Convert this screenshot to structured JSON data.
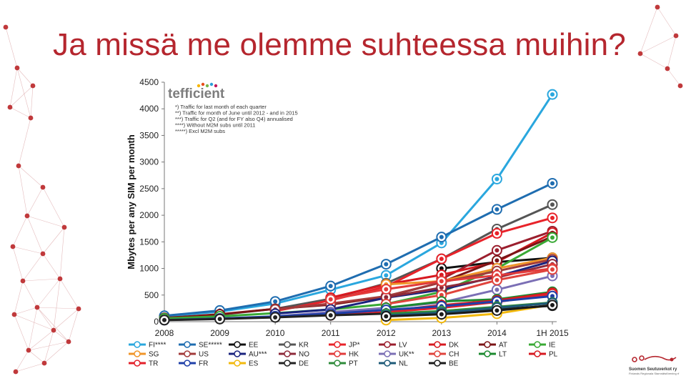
{
  "slide": {
    "title": "Ja missä me olemme suhteessa muihin?"
  },
  "colors": {
    "title": "#b5262e",
    "decoration": "#c0393b"
  },
  "brand": {
    "name": "tefficient",
    "dot_colors": [
      "#f7b500",
      "#e84e1b",
      "#7ab648",
      "#2c9fd9",
      "#c2185b"
    ]
  },
  "notes": [
    "*) Traffic for last month of each quarter",
    "**) Traffic for month of June until 2012 - and in 2015",
    "***) Traffic for Q2 (and for FY also Q4) annualised",
    "****) Without M2M subs until 2011",
    "*****) Excl M2M subs"
  ],
  "logo": {
    "line1": "Suomen Seutuverkot ry",
    "line2": "Finlands Regionala Stamnätsförening rf"
  },
  "chart_data": {
    "type": "line",
    "ylabel": "Mbytes per any SIM per month",
    "ylim": [
      0,
      4500
    ],
    "yticks": [
      0,
      500,
      1000,
      1500,
      2000,
      2500,
      3000,
      3500,
      4000,
      4500
    ],
    "categories": [
      "2008",
      "2009",
      "2010",
      "2011",
      "2012",
      "2013",
      "2014",
      "1H 2015"
    ],
    "grid": false,
    "legend_position": "bottom",
    "series": [
      {
        "name": "FI****",
        "color": "#2aa7de",
        "values": [
          100,
          190,
          340,
          600,
          870,
          1480,
          2680,
          4270
        ]
      },
      {
        "name": "SE*****",
        "color": "#1f6db0",
        "values": [
          110,
          210,
          380,
          670,
          1080,
          1590,
          2110,
          2600
        ]
      },
      {
        "name": "EE",
        "color": "#111111",
        "values": [
          null,
          null,
          null,
          null,
          null,
          1000,
          1120,
          1200
        ]
      },
      {
        "name": "KR",
        "color": "#555555",
        "values": [
          60,
          130,
          240,
          430,
          720,
          1180,
          1740,
          2200
        ]
      },
      {
        "name": "JP*",
        "color": "#e8232a",
        "values": [
          null,
          null,
          200,
          400,
          660,
          1180,
          1660,
          1950
        ]
      },
      {
        "name": "LV",
        "color": "#9b1f2e",
        "values": [
          null,
          null,
          null,
          null,
          null,
          800,
          1340,
          1700
        ]
      },
      {
        "name": "DK",
        "color": "#d71920",
        "values": [
          null,
          null,
          null,
          450,
          700,
          880,
          1120,
          1670
        ]
      },
      {
        "name": "AT",
        "color": "#7b1416",
        "values": [
          70,
          140,
          240,
          320,
          470,
          740,
          1150,
          1600
        ]
      },
      {
        "name": "IE",
        "color": "#39a935",
        "values": [
          60,
          100,
          160,
          230,
          330,
          560,
          1000,
          1580
        ]
      },
      {
        "name": "SG",
        "color": "#f0952a",
        "values": [
          null,
          null,
          null,
          null,
          700,
          760,
          1000,
          1200
        ]
      },
      {
        "name": "US",
        "color": "#a23b3b",
        "values": [
          null,
          null,
          230,
          340,
          480,
          740,
          950,
          1170
        ]
      },
      {
        "name": "AU***",
        "color": "#1a237e",
        "values": [
          null,
          null,
          150,
          230,
          450,
          600,
          850,
          1140
        ]
      },
      {
        "name": "NO",
        "color": "#8e2a3a",
        "values": [
          null,
          null,
          null,
          null,
          460,
          640,
          830,
          1080
        ]
      },
      {
        "name": "HK",
        "color": "#e23b3b",
        "values": [
          null,
          null,
          null,
          420,
          610,
          760,
          870,
          1000
        ]
      },
      {
        "name": "UK**",
        "color": "#7b6fb5",
        "values": [
          null,
          null,
          100,
          180,
          260,
          360,
          600,
          860
        ]
      },
      {
        "name": "CH",
        "color": "#e0433c",
        "values": [
          null,
          null,
          null,
          null,
          330,
          500,
          780,
          980
        ]
      },
      {
        "name": "LT",
        "color": "#1b8a2f",
        "values": [
          null,
          null,
          null,
          null,
          260,
          380,
          420,
          560
        ]
      },
      {
        "name": "PL",
        "color": "#d71920",
        "values": [
          null,
          null,
          null,
          null,
          200,
          310,
          400,
          540
        ]
      },
      {
        "name": "TR",
        "color": "#e3202a",
        "values": [
          null,
          null,
          null,
          120,
          180,
          260,
          370,
          520
        ]
      },
      {
        "name": "FR",
        "color": "#1f3fa8",
        "values": [
          30,
          60,
          100,
          150,
          220,
          290,
          380,
          480
        ]
      },
      {
        "name": "ES",
        "color": "#f2b90d",
        "values": [
          null,
          null,
          null,
          null,
          30,
          70,
          150,
          320
        ]
      },
      {
        "name": "DE",
        "color": "#222222",
        "values": [
          30,
          50,
          80,
          120,
          150,
          180,
          230,
          300
        ]
      },
      {
        "name": "PT",
        "color": "#2e8b3a",
        "values": [
          null,
          null,
          null,
          null,
          150,
          200,
          280,
          360
        ]
      },
      {
        "name": "NL",
        "color": "#1e5a78",
        "values": [
          null,
          null,
          null,
          null,
          120,
          170,
          260,
          350
        ]
      },
      {
        "name": "BE",
        "color": "#1a1a1a",
        "values": [
          null,
          null,
          null,
          null,
          100,
          140,
          210,
          310
        ]
      }
    ]
  }
}
